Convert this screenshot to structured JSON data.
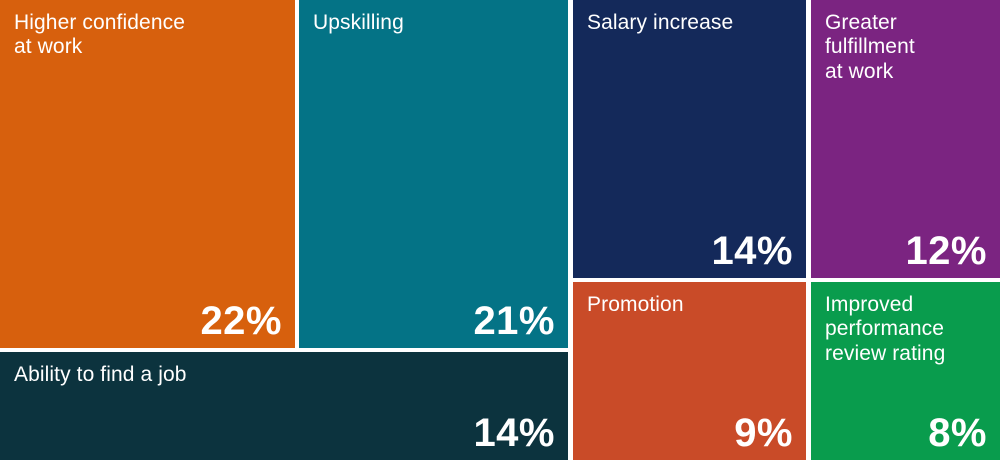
{
  "chart_data": {
    "type": "treemap",
    "title": "",
    "unit": "%",
    "legend": "none",
    "text_color": "#FFFFFF",
    "background_color": "#FFFFFF",
    "total": 100,
    "items": [
      {
        "label": "Higher confidence at work",
        "display_label": "Higher confidence\nat work",
        "value": 22,
        "value_label": "22%",
        "color": "#D7600D"
      },
      {
        "label": "Upskilling",
        "display_label": "Upskilling",
        "value": 21,
        "value_label": "21%",
        "color": "#047386"
      },
      {
        "label": "Salary increase",
        "display_label": "Salary increase",
        "value": 14,
        "value_label": "14%",
        "color": "#14295A"
      },
      {
        "label": "Greater fulfillment at work",
        "display_label": "Greater\nfulfillment\nat work",
        "value": 12,
        "value_label": "12%",
        "color": "#7B2481"
      },
      {
        "label": "Ability to find a job",
        "display_label": "Ability to find a job",
        "value": 14,
        "value_label": "14%",
        "color": "#0C333E"
      },
      {
        "label": "Promotion",
        "display_label": "Promotion",
        "value": 9,
        "value_label": "9%",
        "color": "#C94B28"
      },
      {
        "label": "Improved performance review rating",
        "display_label": "Improved\nperformance\nreview rating",
        "value": 8,
        "value_label": "8%",
        "color": "#099C4D"
      }
    ]
  }
}
